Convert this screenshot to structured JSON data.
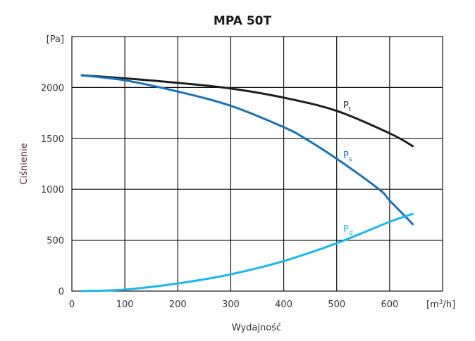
{
  "chart_data": {
    "type": "line",
    "title": "MPA 50T",
    "xlabel": "Wydajność",
    "ylabel": "Ciśnienie",
    "x_unit": "[m³/h]",
    "x_unit_base": "[m",
    "x_unit_sup": "3",
    "x_unit_tail": "/h]",
    "y_unit": "[Pa]",
    "xlim": [
      0,
      700
    ],
    "ylim": [
      0,
      2500
    ],
    "grid": true,
    "x_ticks": [
      "0",
      "100",
      "200",
      "300",
      "400",
      "500",
      "600"
    ],
    "y_ticks": [
      "0",
      "500",
      "1000",
      "1500",
      "2000"
    ],
    "series": [
      {
        "name": "Pt",
        "label_main": "P",
        "label_sub": "t",
        "color": "#1e1e1e",
        "x": [
          17,
          100,
          200,
          300,
          400,
          500,
          600,
          645
        ],
        "y": [
          2120,
          2090,
          2045,
          1990,
          1900,
          1770,
          1550,
          1420
        ]
      },
      {
        "name": "Ps",
        "label_main": "P",
        "label_sub": "s",
        "color": "#1a72b8",
        "x": [
          17,
          100,
          200,
          300,
          400,
          440,
          500,
          580,
          600,
          645
        ],
        "y": [
          2120,
          2070,
          1960,
          1820,
          1610,
          1500,
          1300,
          1000,
          890,
          650
        ]
      },
      {
        "name": "Pd",
        "label_main": "P",
        "label_sub": "d",
        "color": "#1ab8ec",
        "x": [
          17,
          100,
          200,
          300,
          400,
          500,
          600,
          645
        ],
        "y": [
          0,
          15,
          75,
          165,
          295,
          470,
          680,
          760
        ]
      }
    ],
    "ylabel_color": "#5a1f3d"
  }
}
